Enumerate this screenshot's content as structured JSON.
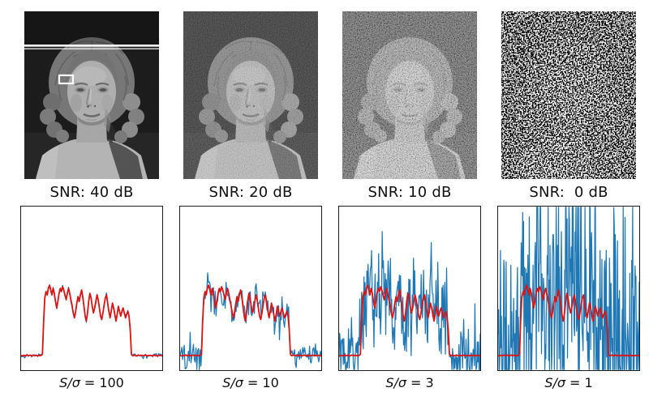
{
  "figure": {
    "description": "Image quality vs signal-to-noise ratio: statue photograph with added noise (top) and intensity profile along the marked scan line (bottom)",
    "panels": [
      {
        "snr_label": "SNR: 40 dB",
        "caption_var": "S/σ",
        "caption_eq": "= 100"
      },
      {
        "snr_label": "SNR: 20 dB",
        "caption_var": "S/σ",
        "caption_eq": "= 10"
      },
      {
        "snr_label": "SNR: 10 dB",
        "caption_var": "S/σ",
        "caption_eq": "= 3"
      },
      {
        "snr_label": "SNR:  0 dB",
        "caption_var": "S/σ",
        "caption_eq": "= 1"
      }
    ]
  },
  "colors": {
    "noisy_line": "#1f77b4",
    "clean_line": "#db1414",
    "plot_border": "#1c1c1c",
    "background": "#ffffff",
    "annotation": "#ffffff"
  },
  "chart_data": {
    "type": "line",
    "title": "",
    "xlabel": "",
    "ylabel": "",
    "axis_ticks_visible": false,
    "x_range": [
      0,
      1
    ],
    "ylim": [
      0,
      1
    ],
    "legend": "none",
    "series_roles": {
      "blue": "noisy measured profile",
      "red": "noise-free signal profile"
    },
    "clean_profile": [
      0.09,
      0.087,
      0.091,
      0.088,
      0.09,
      0.093,
      0.088,
      0.09,
      0.092,
      0.087,
      0.09,
      0.092,
      0.088,
      0.091,
      0.089,
      0.09,
      0.088,
      0.091,
      0.098,
      0.3,
      0.44,
      0.48,
      0.46,
      0.5,
      0.52,
      0.49,
      0.46,
      0.5,
      0.47,
      0.42,
      0.38,
      0.42,
      0.47,
      0.5,
      0.48,
      0.51,
      0.49,
      0.46,
      0.43,
      0.47,
      0.5,
      0.47,
      0.43,
      0.39,
      0.35,
      0.32,
      0.36,
      0.41,
      0.45,
      0.42,
      0.46,
      0.49,
      0.45,
      0.39,
      0.33,
      0.3,
      0.35,
      0.42,
      0.47,
      0.44,
      0.39,
      0.35,
      0.38,
      0.42,
      0.46,
      0.43,
      0.38,
      0.33,
      0.31,
      0.35,
      0.4,
      0.44,
      0.46,
      0.41,
      0.36,
      0.32,
      0.36,
      0.41,
      0.38,
      0.34,
      0.3,
      0.34,
      0.39,
      0.36,
      0.33,
      0.36,
      0.38,
      0.35,
      0.32,
      0.34,
      0.36,
      0.33,
      0.25,
      0.098,
      0.088,
      0.09,
      0.092,
      0.087,
      0.09,
      0.093,
      0.088,
      0.09,
      0.091,
      0.088,
      0.09,
      0.092,
      0.087,
      0.09,
      0.089,
      0.091,
      0.088,
      0.09,
      0.092,
      0.088,
      0.09,
      0.087,
      0.091,
      0.09,
      0.089,
      0.09
    ],
    "panels": [
      {
        "label": "S/σ = 100",
        "snr_db": 40,
        "noise_sigma": 0.006,
        "noisy_points": 120,
        "seed": 11
      },
      {
        "label": "S/σ = 10",
        "snr_db": 20,
        "noise_sigma": 0.045,
        "noisy_points": 170,
        "seed": 22
      },
      {
        "label": "S/σ = 3",
        "snr_db": 10,
        "noise_sigma": 0.14,
        "noisy_points": 240,
        "seed": 33
      },
      {
        "label": "S/σ = 1",
        "snr_db": 0,
        "noise_sigma": 0.4,
        "noisy_points": 300,
        "seed": 44
      }
    ]
  }
}
